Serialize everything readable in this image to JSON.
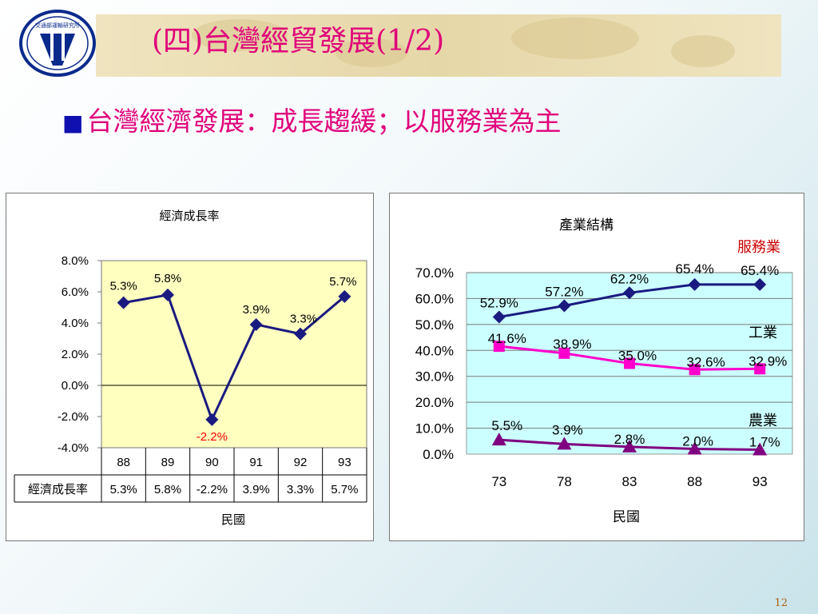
{
  "slide": {
    "title": "(四)台灣經貿發展(1/2)",
    "subtitle_bullet": "■",
    "subtitle": "台灣經濟發展：成長趨緩；以服務業為主",
    "page_number": "12",
    "logo_text": "交通部運輸研究所"
  },
  "colors": {
    "accent_title": "#e0007a",
    "service": "#1a1a80",
    "industry": "#ff00cc",
    "agriculture": "#800080",
    "growth_line": "#1a1a80",
    "left_plot_bg": "#ffffc0",
    "right_plot_bg": "#ccffff"
  },
  "chart_data": [
    {
      "type": "line",
      "title": "經濟成長率",
      "xlabel": "民國",
      "ylabel": "",
      "categories": [
        "88",
        "89",
        "90",
        "91",
        "92",
        "93"
      ],
      "series": [
        {
          "name": "經濟成長率",
          "values": [
            5.3,
            5.8,
            -2.2,
            3.9,
            3.3,
            5.7
          ],
          "labels": [
            "5.3%",
            "5.8%",
            "-2.2%",
            "3.9%",
            "3.3%",
            "5.7%"
          ]
        }
      ],
      "ylim": [
        -4.0,
        8.0
      ],
      "yticks": [
        "8.0%",
        "6.0%",
        "4.0%",
        "2.0%",
        "0.0%",
        "-2.0%",
        "-4.0%"
      ],
      "data_table": true,
      "marker": "diamond"
    },
    {
      "type": "line",
      "title": "產業結構",
      "xlabel": "民國",
      "ylabel": "",
      "categories": [
        "73",
        "78",
        "83",
        "88",
        "93"
      ],
      "series": [
        {
          "name": "服務業",
          "values": [
            52.9,
            57.2,
            62.2,
            65.4,
            65.4
          ],
          "labels": [
            "52.9%",
            "57.2%",
            "62.2%",
            "65.4%",
            "65.4%"
          ],
          "marker": "diamond"
        },
        {
          "name": "工業",
          "values": [
            41.6,
            38.9,
            35.0,
            32.6,
            32.9
          ],
          "labels": [
            "41.6%",
            "38.9%",
            "35.0%",
            "32.6%",
            "32.9%"
          ],
          "marker": "square"
        },
        {
          "name": "農業",
          "values": [
            5.5,
            3.9,
            2.8,
            2.0,
            1.7
          ],
          "labels": [
            "5.5%",
            "3.9%",
            "2.8%",
            "2.0%",
            "1.7%"
          ],
          "marker": "triangle"
        }
      ],
      "ylim": [
        0,
        70
      ],
      "yticks": [
        "70.0%",
        "60.0%",
        "50.0%",
        "40.0%",
        "30.0%",
        "20.0%",
        "10.0%",
        "0.0%"
      ],
      "grid": true
    }
  ]
}
